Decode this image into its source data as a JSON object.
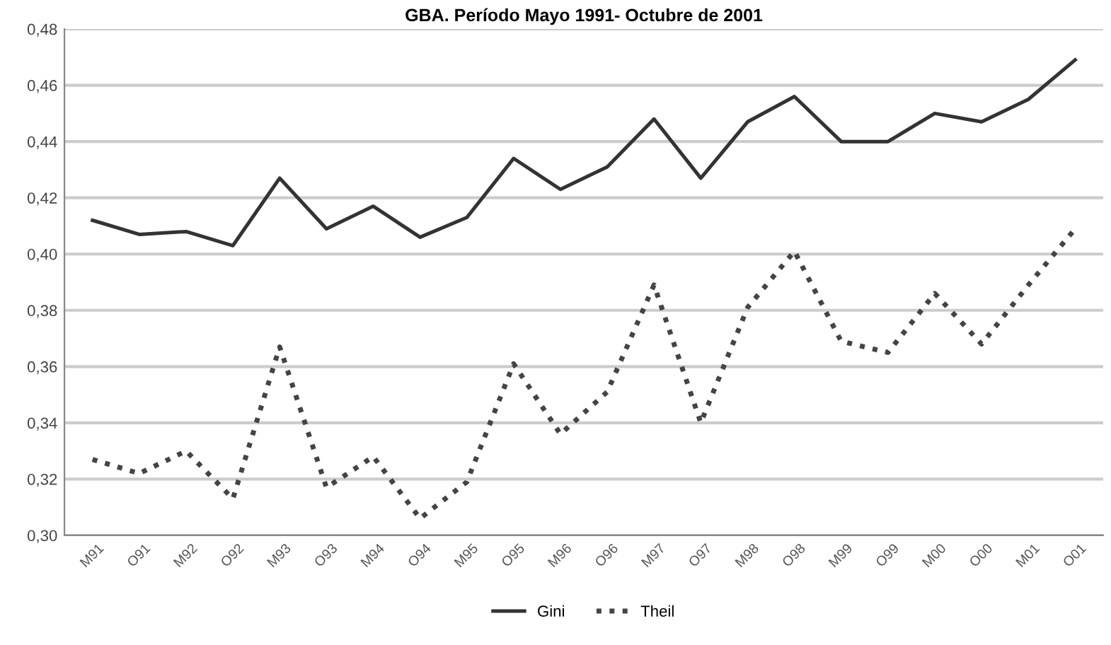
{
  "chart_data": {
    "type": "line",
    "title": "GBA. Período Mayo 1991- Octubre de 2001",
    "categories": [
      "M91",
      "O91",
      "M92",
      "O92",
      "M93",
      "O93",
      "M94",
      "O94",
      "M95",
      "O95",
      "M96",
      "O96",
      "M97",
      "O97",
      "M98",
      "O98",
      "M99",
      "O99",
      "M00",
      "O00",
      "M01",
      "O01"
    ],
    "series": [
      {
        "name": "Gini",
        "color": "#333333",
        "line_style": "solid",
        "values": [
          0.412,
          0.407,
          0.408,
          0.403,
          0.427,
          0.409,
          0.417,
          0.406,
          0.413,
          0.434,
          0.423,
          0.431,
          0.448,
          0.427,
          0.447,
          0.456,
          0.44,
          0.44,
          0.45,
          0.447,
          0.455,
          0.469
        ]
      },
      {
        "name": "Theil",
        "color": "#444444",
        "line_style": "dotted",
        "values": [
          0.327,
          0.322,
          0.33,
          0.313,
          0.367,
          0.317,
          0.328,
          0.306,
          0.319,
          0.361,
          0.336,
          0.351,
          0.389,
          0.34,
          0.381,
          0.401,
          0.369,
          0.365,
          0.386,
          0.368,
          0.389,
          0.409
        ]
      }
    ],
    "ylim": [
      0.3,
      0.48
    ],
    "yticks": [
      {
        "value": 0.3,
        "label": "0,30"
      },
      {
        "value": 0.32,
        "label": "0,32"
      },
      {
        "value": 0.34,
        "label": "0,34"
      },
      {
        "value": 0.36,
        "label": "0,36"
      },
      {
        "value": 0.38,
        "label": "0,38"
      },
      {
        "value": 0.4,
        "label": "0,40"
      },
      {
        "value": 0.42,
        "label": "0,42"
      },
      {
        "value": 0.44,
        "label": "0,44"
      },
      {
        "value": 0.46,
        "label": "0,46"
      },
      {
        "value": 0.48,
        "label": "0,48"
      }
    ],
    "grid": "y",
    "legend": "bottom",
    "marker": "none"
  }
}
